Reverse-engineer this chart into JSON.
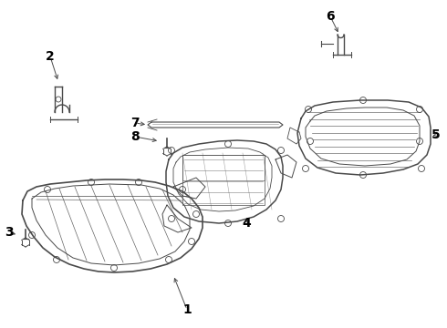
{
  "background_color": "#ffffff",
  "line_color": "#4a4a4a",
  "label_color": "#000000",
  "label_fontsize": 10,
  "fig_width": 4.9,
  "fig_height": 3.6,
  "dpi": 100
}
